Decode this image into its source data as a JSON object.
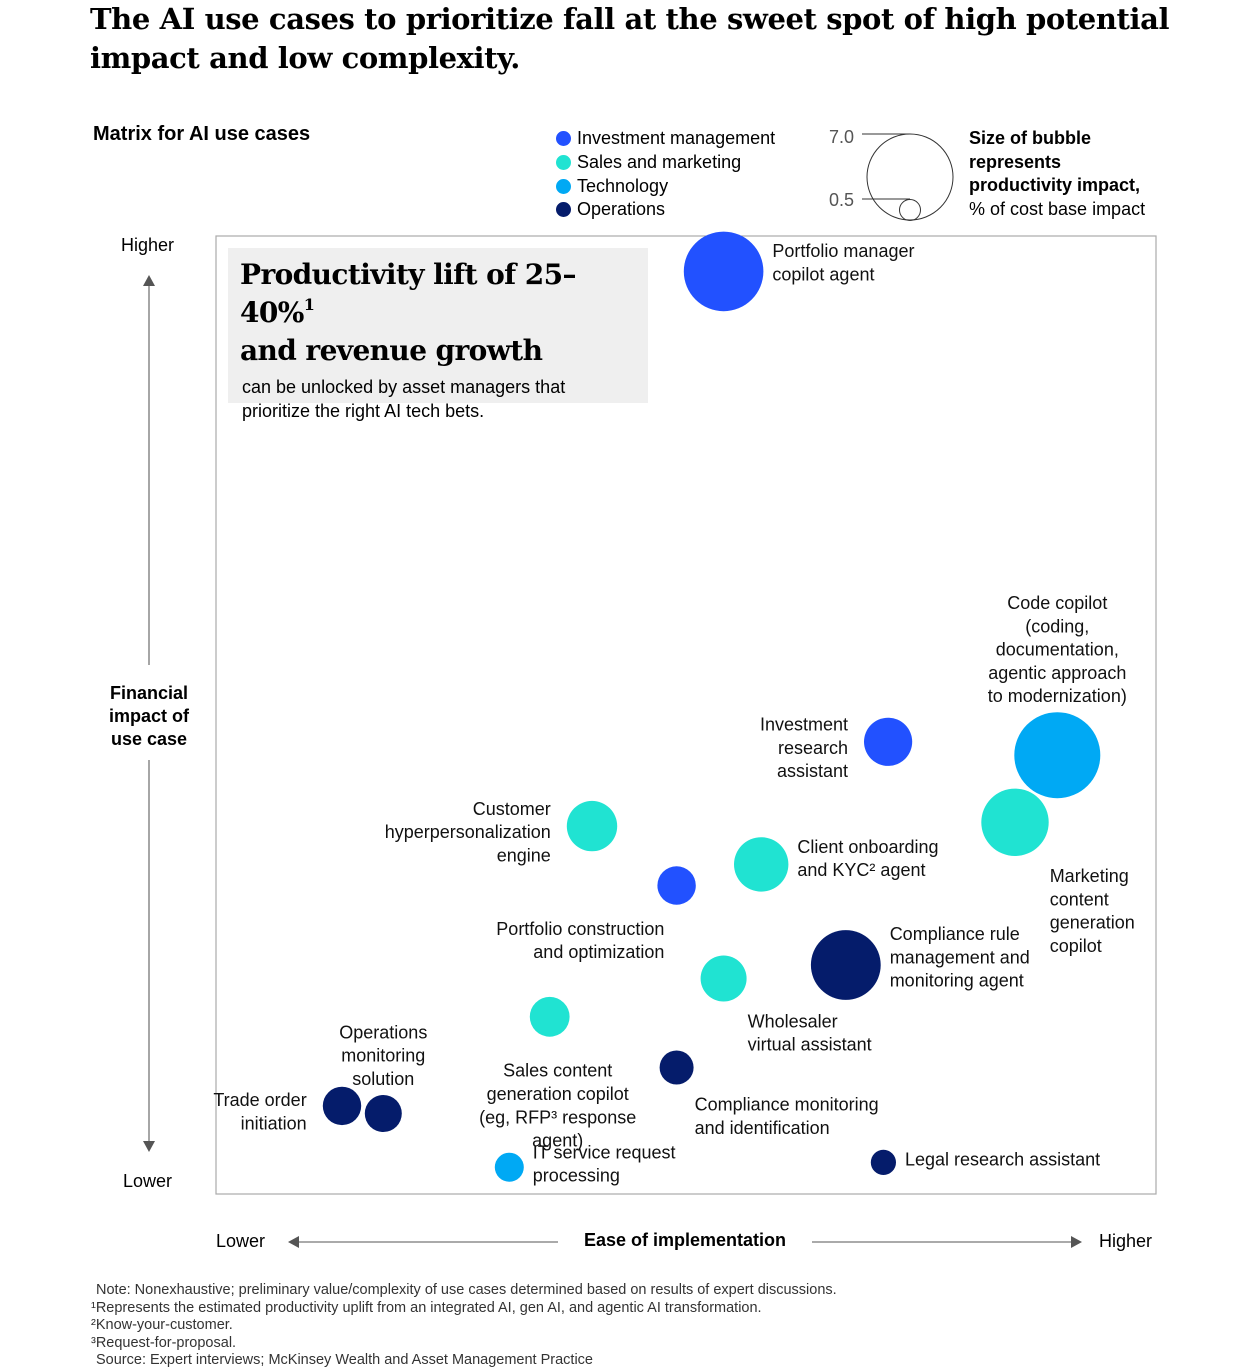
{
  "headline": "The AI use cases to prioritize fall at the sweet spot of high potential impact and low complexity.",
  "chart_title": "Matrix for AI use cases",
  "legend": {
    "categories": [
      {
        "name": "Investment management",
        "color": "#2251ff"
      },
      {
        "name": "Sales and marketing",
        "color": "#20e3d2"
      },
      {
        "name": "Technology",
        "color": "#00a9f4"
      },
      {
        "name": "Operations",
        "color": "#051c6b"
      }
    ],
    "size_max_label": "7.0",
    "size_min_label": "0.5",
    "size_note_bold": [
      "Size of bubble",
      "represents",
      "productivity impact,"
    ],
    "size_note_regular": "% of cost base impact"
  },
  "callout": {
    "title_line1": "Productivity lift of 25–40%",
    "title_sup": "1",
    "title_line2": "and revenue growth",
    "body": "can be unlocked by asset managers that prioritize the right AI tech bets."
  },
  "y_axis": {
    "label_lines": [
      "Financial",
      "impact of",
      "use case"
    ],
    "low": "Lower",
    "high": "Higher"
  },
  "x_axis": {
    "label": "Ease of implementation",
    "low": "Lower",
    "high": "Higher"
  },
  "chart_data": {
    "type": "scatter",
    "title": "Matrix for AI use cases",
    "xlabel": "Ease of implementation",
    "ylabel": "Financial impact of use case",
    "xlim": [
      0,
      100
    ],
    "ylim": [
      0,
      100
    ],
    "size_unit": "% of cost base impact",
    "size_legend": [
      7.0,
      0.5
    ],
    "points": [
      {
        "name": "Portfolio manager copilot agent",
        "label_lines": [
          "Portfolio manager",
          "copilot agent"
        ],
        "category": "Investment management",
        "x": 54,
        "y": 96.3,
        "size": 6.0,
        "label_pos": "right"
      },
      {
        "name": "Code copilot",
        "label_lines": [
          "Code copilot",
          "(coding,",
          "documentation,",
          "agentic approach",
          "to modernization)"
        ],
        "category": "Technology",
        "x": 89.5,
        "y": 45.8,
        "size": 7.0,
        "label_pos": "top"
      },
      {
        "name": "Investment research assistant",
        "label_lines": [
          "Investment",
          "research",
          "assistant"
        ],
        "category": "Investment management",
        "x": 71.5,
        "y": 47.2,
        "size": 2.2,
        "label_pos": "left"
      },
      {
        "name": "Marketing content generation copilot",
        "label_lines": [
          "Marketing",
          "content",
          "generation",
          "copilot"
        ],
        "category": "Sales and marketing",
        "x": 85,
        "y": 38.8,
        "size": 4.3,
        "label_pos": "right-below"
      },
      {
        "name": "Customer hyperpersonalization engine",
        "label_lines": [
          "Customer",
          "hyperpersonalization",
          "engine"
        ],
        "category": "Sales and marketing",
        "x": 40,
        "y": 38.4,
        "size": 2.4,
        "label_pos": "left"
      },
      {
        "name": "Client onboarding and KYC agent",
        "label_lines": [
          "Client onboarding",
          "and KYC² agent"
        ],
        "category": "Sales and marketing",
        "x": 58,
        "y": 34.4,
        "size": 2.8,
        "label_pos": "right"
      },
      {
        "name": "Portfolio construction and optimization",
        "label_lines": [
          "Portfolio construction",
          "and optimization"
        ],
        "category": "Investment management",
        "x": 49,
        "y": 32.2,
        "size": 1.4,
        "label_pos": "left-below"
      },
      {
        "name": "Compliance rule management and monitoring agent",
        "label_lines": [
          "Compliance rule",
          "management and",
          "monitoring agent"
        ],
        "category": "Operations",
        "x": 67,
        "y": 23.9,
        "size": 4.6,
        "label_pos": "right"
      },
      {
        "name": "Wholesaler virtual assistant",
        "label_lines": [
          "Wholesaler",
          "virtual assistant"
        ],
        "category": "Sales and marketing",
        "x": 54,
        "y": 22.5,
        "size": 2.0,
        "label_pos": "right-below"
      },
      {
        "name": "Sales content generation copilot",
        "label_lines": [
          "Sales content",
          "generation copilot",
          "(eg, RFP³ response",
          "agent)"
        ],
        "category": "Sales and marketing",
        "x": 35.5,
        "y": 18.5,
        "size": 1.5,
        "label_pos": "below"
      },
      {
        "name": "Compliance monitoring and identification",
        "label_lines": [
          "Compliance monitoring",
          "and identification"
        ],
        "category": "Operations",
        "x": 49,
        "y": 13.2,
        "size": 1.1,
        "label_pos": "right-below"
      },
      {
        "name": "Trade order initiation",
        "label_lines": [
          "Trade order",
          "initiation"
        ],
        "category": "Operations",
        "x": 13.4,
        "y": 9.2,
        "size": 1.4,
        "label_pos": "left"
      },
      {
        "name": "Operations monitoring solution",
        "label_lines": [
          "Operations",
          "monitoring",
          "solution"
        ],
        "category": "Operations",
        "x": 17.8,
        "y": 8.4,
        "size": 1.3,
        "label_pos": "top"
      },
      {
        "name": "IT service request processing",
        "label_lines": [
          "IT service request",
          "processing"
        ],
        "category": "Technology",
        "x": 31.2,
        "y": 2.8,
        "size": 0.8,
        "label_pos": "right"
      },
      {
        "name": "Legal research assistant",
        "label_lines": [
          "Legal research assistant"
        ],
        "category": "Operations",
        "x": 71,
        "y": 3.3,
        "size": 0.6,
        "label_pos": "right"
      }
    ]
  },
  "footnotes": [
    "Note: Nonexhaustive; preliminary value/complexity of use cases determined based on results of expert discussions.",
    "¹Represents the estimated productivity uplift from an integrated AI, gen AI, and agentic AI transformation.",
    "²Know-your-customer.",
    "³Request-for-proposal.",
    "Source: Expert interviews; McKinsey Wealth and Asset Management Practice"
  ]
}
